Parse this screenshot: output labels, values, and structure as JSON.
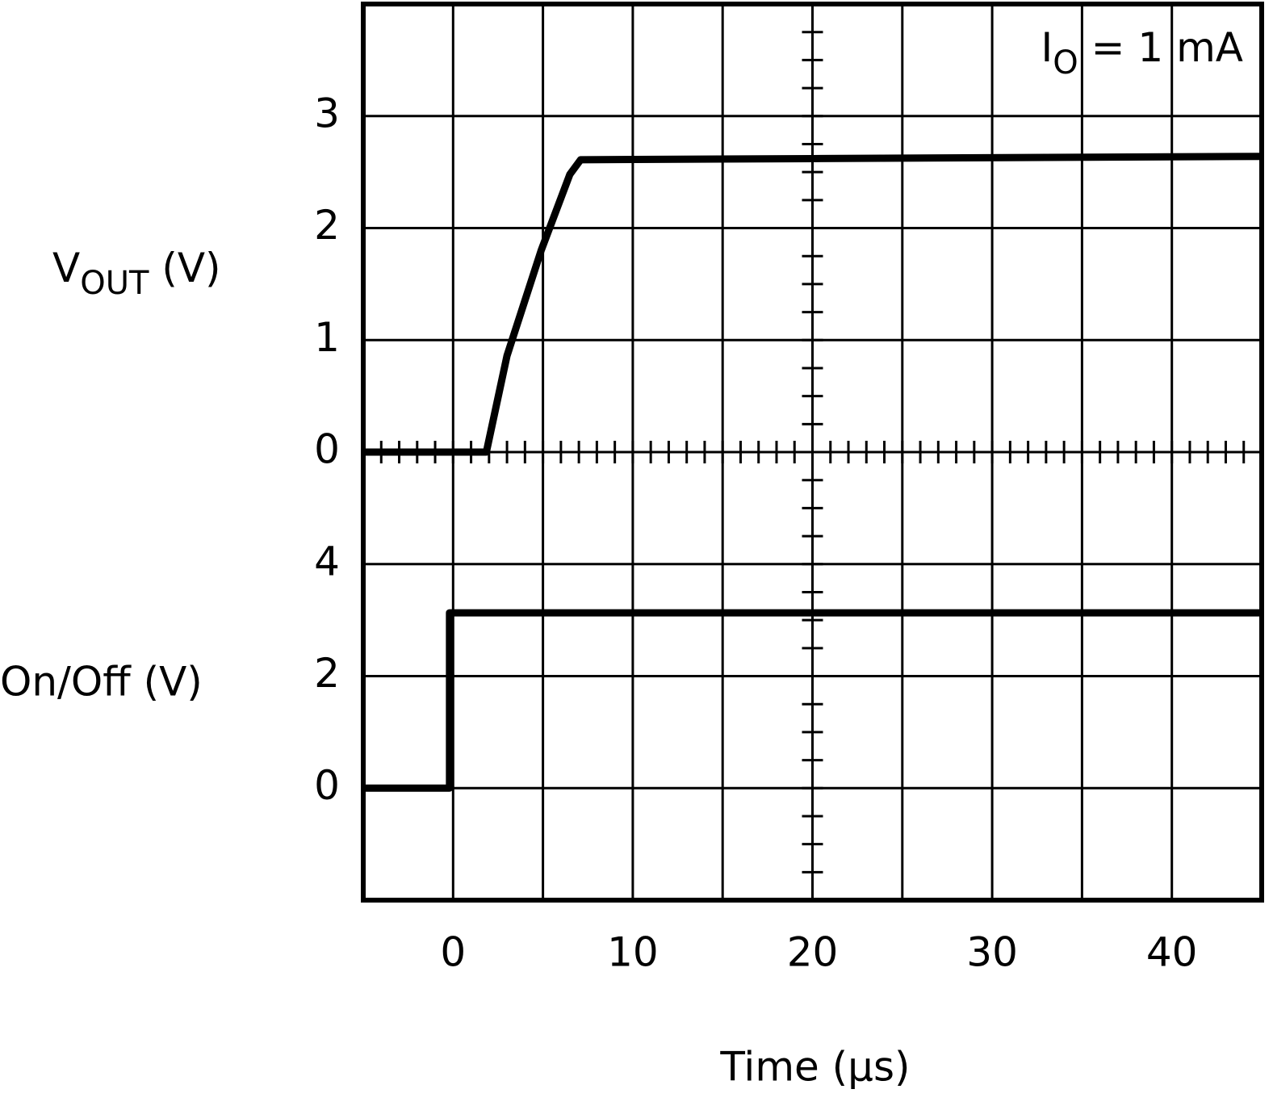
{
  "chart_data": [
    {
      "type": "line",
      "y_label": {
        "text": "V",
        "sub": "OUT",
        "rest": " (V)"
      },
      "annotation": {
        "text": "I",
        "sub": "O",
        "rest": " = 1 mA"
      },
      "xlim": [
        -5,
        45
      ],
      "xticks": [
        0,
        10,
        20,
        30,
        40
      ],
      "x_minor_grid": [
        5,
        15,
        25,
        35
      ],
      "ylim": [
        0,
        4
      ],
      "yticks": [
        0,
        1,
        2,
        3
      ],
      "grid": true,
      "series": [
        {
          "name": "VOUT",
          "color": "#000000",
          "x": [
            -5,
            1.85,
            3,
            4.9,
            6.5,
            7.1,
            20,
            45
          ],
          "values": [
            0,
            0,
            0.86,
            1.8,
            2.48,
            2.61,
            2.62,
            2.64
          ]
        }
      ]
    },
    {
      "type": "line",
      "y_label": "On/Off (V)",
      "x_label": "Time (µs)",
      "xlim": [
        -5,
        45
      ],
      "xticks": [
        0,
        10,
        20,
        30,
        40
      ],
      "x_minor_grid": [
        5,
        15,
        25,
        35
      ],
      "ylim": [
        -2,
        6
      ],
      "yticks": [
        0,
        2,
        4
      ],
      "grid": true,
      "series": [
        {
          "name": "On/Off",
          "color": "#000000",
          "x": [
            -5,
            -0.2,
            -0.2,
            45
          ],
          "values": [
            0,
            0,
            3.13,
            3.13
          ]
        }
      ]
    }
  ]
}
